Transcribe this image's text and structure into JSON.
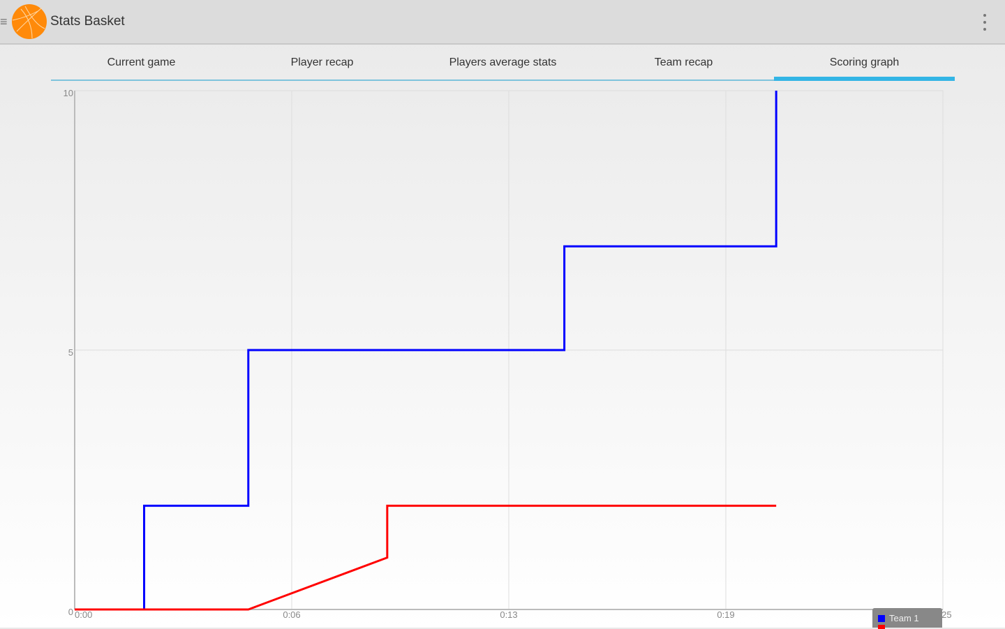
{
  "app": {
    "title": "Stats Basket",
    "menu_icon": "hamburger-icon",
    "logo": "basketball-icon",
    "overflow_icon": "more-vert-icon"
  },
  "tabs": [
    {
      "label": "Current game"
    },
    {
      "label": "Player recap"
    },
    {
      "label": "Players average stats"
    },
    {
      "label": "Team recap"
    },
    {
      "label": "Scoring graph",
      "active": true
    }
  ],
  "chart_data": {
    "type": "line",
    "xlim": [
      0,
      25
    ],
    "ylim": [
      0,
      10
    ],
    "x_ticks": [
      {
        "value": 0,
        "label": "0:00"
      },
      {
        "value": 6.25,
        "label": "0:06"
      },
      {
        "value": 12.5,
        "label": "0:13"
      },
      {
        "value": 18.75,
        "label": "0:19"
      },
      {
        "value": 25,
        "label": "0:25"
      }
    ],
    "y_ticks": [
      {
        "value": 0,
        "label": "0"
      },
      {
        "value": 5,
        "label": "5"
      },
      {
        "value": 10,
        "label": "10"
      }
    ],
    "grid": true,
    "legend_position": "bottom-right",
    "series": [
      {
        "name": "Team 1",
        "color": "#0000ff",
        "points": [
          [
            0,
            0
          ],
          [
            2,
            0
          ],
          [
            2,
            2
          ],
          [
            5,
            2
          ],
          [
            5,
            5
          ],
          [
            14.1,
            5
          ],
          [
            14.1,
            7
          ],
          [
            20.2,
            7
          ],
          [
            20.2,
            10
          ]
        ]
      },
      {
        "color": "#ff0000",
        "points": [
          [
            0,
            0
          ],
          [
            5,
            0
          ],
          [
            9,
            1
          ],
          [
            9,
            2
          ],
          [
            20.2,
            2
          ]
        ]
      }
    ]
  }
}
